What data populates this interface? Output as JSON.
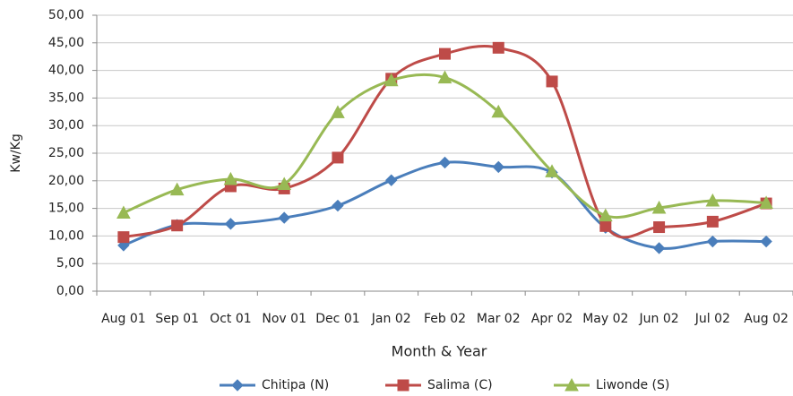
{
  "chart_data": {
    "type": "line",
    "x_label": "Month & Year",
    "y_label": "Kw/Kg",
    "categories": [
      "Aug 01",
      "Sep 01",
      "Oct 01",
      "Nov 01",
      "Dec 01",
      "Jan 02",
      "Feb 02",
      "Mar 02",
      "Apr 02",
      "May 02",
      "Jun 02",
      "Jul 02",
      "Aug 02"
    ],
    "series": [
      {
        "name": "Chitipa (N)",
        "color": "#4a7ebb",
        "marker": "diamond",
        "values": [
          8.3,
          12.0,
          12.2,
          13.3,
          15.5,
          20.1,
          23.3,
          22.5,
          21.5,
          11.5,
          7.8,
          9.0,
          9.0
        ]
      },
      {
        "name": "Salima (C)",
        "color": "#be4b48",
        "marker": "square",
        "values": [
          9.8,
          11.9,
          19.0,
          18.6,
          24.2,
          38.5,
          43.0,
          44.1,
          38.0,
          11.8,
          11.6,
          12.6,
          15.9
        ]
      },
      {
        "name": "Liwonde (S)",
        "color": "#98b954",
        "marker": "triangle",
        "values": [
          14.2,
          18.4,
          20.3,
          19.4,
          32.4,
          38.2,
          38.7,
          32.5,
          21.7,
          13.7,
          15.1,
          16.4,
          16.0
        ]
      }
    ],
    "ylim": [
      0,
      50
    ],
    "yticks": [
      {
        "value": 0,
        "label": "0,00"
      },
      {
        "value": 5,
        "label": "5,00"
      },
      {
        "value": 10,
        "label": "10,00"
      },
      {
        "value": 15,
        "label": "15,00"
      },
      {
        "value": 20,
        "label": "20,00"
      },
      {
        "value": 25,
        "label": "25,00"
      },
      {
        "value": 30,
        "label": "30,00"
      },
      {
        "value": 35,
        "label": "35,00"
      },
      {
        "value": 40,
        "label": "40,00"
      },
      {
        "value": 45,
        "label": "45,00"
      },
      {
        "value": 50,
        "label": "50,00"
      }
    ],
    "grid": true,
    "smooth": true,
    "legend": "bottom"
  }
}
